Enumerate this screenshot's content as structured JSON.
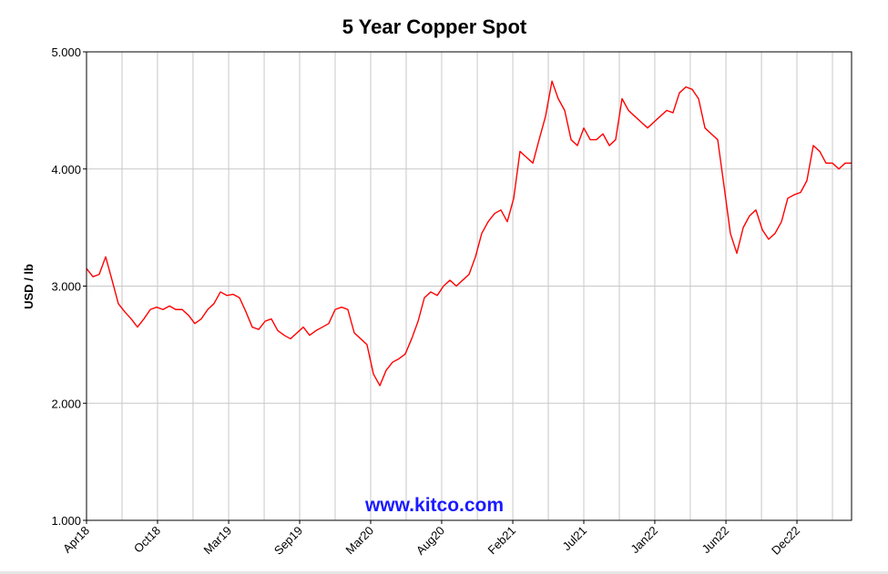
{
  "chart_data": {
    "type": "line",
    "title": "5 Year Copper Spot",
    "y_label": "USD / lb",
    "watermark": "www.kitco.com",
    "xlim": [
      2018.25,
      2023.25
    ],
    "xticks": [
      {
        "value": 2018.25,
        "label": "Apr18"
      },
      {
        "value": 2018.714,
        "label": "Oct18"
      },
      {
        "value": 2019.179,
        "label": "Mar19"
      },
      {
        "value": 2019.643,
        "label": "Sep19"
      },
      {
        "value": 2020.107,
        "label": "Mar20"
      },
      {
        "value": 2020.571,
        "label": "Aug20"
      },
      {
        "value": 2021.036,
        "label": "Feb21"
      },
      {
        "value": 2021.5,
        "label": "Jul21"
      },
      {
        "value": 2021.964,
        "label": "Jan22"
      },
      {
        "value": 2022.429,
        "label": "Jun22"
      },
      {
        "value": 2022.893,
        "label": "Dec22"
      }
    ],
    "xminorticks": [
      2018.482,
      2018.946,
      2019.411,
      2019.875,
      2020.339,
      2020.804,
      2021.268,
      2021.732,
      2022.196,
      2022.661,
      2023.125
    ],
    "ylim": [
      1,
      5
    ],
    "yticks": [
      {
        "value": 1,
        "label": "1.000"
      },
      {
        "value": 2,
        "label": "2.000"
      },
      {
        "value": 3,
        "label": "3.000"
      },
      {
        "value": 4,
        "label": "4.000"
      },
      {
        "value": 5,
        "label": "5.000"
      }
    ],
    "grid": true,
    "x": [
      2018.25,
      2018.292,
      2018.333,
      2018.375,
      2018.417,
      2018.458,
      2018.5,
      2018.542,
      2018.583,
      2018.625,
      2018.667,
      2018.708,
      2018.75,
      2018.792,
      2018.833,
      2018.875,
      2018.917,
      2018.958,
      2019.0,
      2019.042,
      2019.083,
      2019.125,
      2019.167,
      2019.208,
      2019.25,
      2019.292,
      2019.333,
      2019.375,
      2019.417,
      2019.458,
      2019.5,
      2019.542,
      2019.583,
      2019.625,
      2019.667,
      2019.708,
      2019.75,
      2019.792,
      2019.833,
      2019.875,
      2019.917,
      2019.958,
      2020.0,
      2020.042,
      2020.083,
      2020.125,
      2020.167,
      2020.208,
      2020.25,
      2020.292,
      2020.333,
      2020.375,
      2020.417,
      2020.458,
      2020.5,
      2020.542,
      2020.583,
      2020.625,
      2020.667,
      2020.708,
      2020.75,
      2020.792,
      2020.833,
      2020.875,
      2020.917,
      2020.958,
      2021.0,
      2021.042,
      2021.083,
      2021.125,
      2021.167,
      2021.208,
      2021.25,
      2021.292,
      2021.333,
      2021.375,
      2021.417,
      2021.458,
      2021.5,
      2021.542,
      2021.583,
      2021.625,
      2021.667,
      2021.708,
      2021.75,
      2021.792,
      2021.833,
      2021.875,
      2021.917,
      2021.958,
      2022.0,
      2022.042,
      2022.083,
      2022.125,
      2022.167,
      2022.208,
      2022.25,
      2022.292,
      2022.333,
      2022.375,
      2022.417,
      2022.458,
      2022.5,
      2022.542,
      2022.583,
      2022.625,
      2022.667,
      2022.708,
      2022.75,
      2022.792,
      2022.833,
      2022.875,
      2022.917,
      2022.958,
      2023.0,
      2023.042,
      2023.083,
      2023.125,
      2023.167,
      2023.208,
      2023.25
    ],
    "series": [
      {
        "name": "Copper",
        "color": "#ff0000",
        "values": [
          3.15,
          3.08,
          3.1,
          3.25,
          3.05,
          2.85,
          2.78,
          2.72,
          2.65,
          2.72,
          2.8,
          2.82,
          2.8,
          2.83,
          2.8,
          2.8,
          2.75,
          2.68,
          2.72,
          2.8,
          2.85,
          2.95,
          2.92,
          2.93,
          2.9,
          2.78,
          2.65,
          2.63,
          2.7,
          2.72,
          2.62,
          2.58,
          2.55,
          2.6,
          2.65,
          2.58,
          2.62,
          2.65,
          2.68,
          2.8,
          2.82,
          2.8,
          2.6,
          2.55,
          2.5,
          2.25,
          2.15,
          2.28,
          2.35,
          2.38,
          2.42,
          2.55,
          2.7,
          2.9,
          2.95,
          2.92,
          3.0,
          3.05,
          3.0,
          3.05,
          3.1,
          3.25,
          3.45,
          3.55,
          3.62,
          3.65,
          3.55,
          3.75,
          4.15,
          4.1,
          4.05,
          4.25,
          4.45,
          4.75,
          4.6,
          4.5,
          4.25,
          4.2,
          4.35,
          4.25,
          4.25,
          4.3,
          4.2,
          4.25,
          4.6,
          4.5,
          4.45,
          4.4,
          4.35,
          4.4,
          4.45,
          4.5,
          4.48,
          4.65,
          4.7,
          4.68,
          4.6,
          4.35,
          4.3,
          4.25,
          3.85,
          3.45,
          3.28,
          3.5,
          3.6,
          3.65,
          3.48,
          3.4,
          3.45,
          3.55,
          3.75,
          3.78,
          3.8,
          3.9,
          4.2,
          4.15,
          4.05,
          4.05,
          4.0,
          4.05,
          4.05
        ]
      }
    ]
  }
}
